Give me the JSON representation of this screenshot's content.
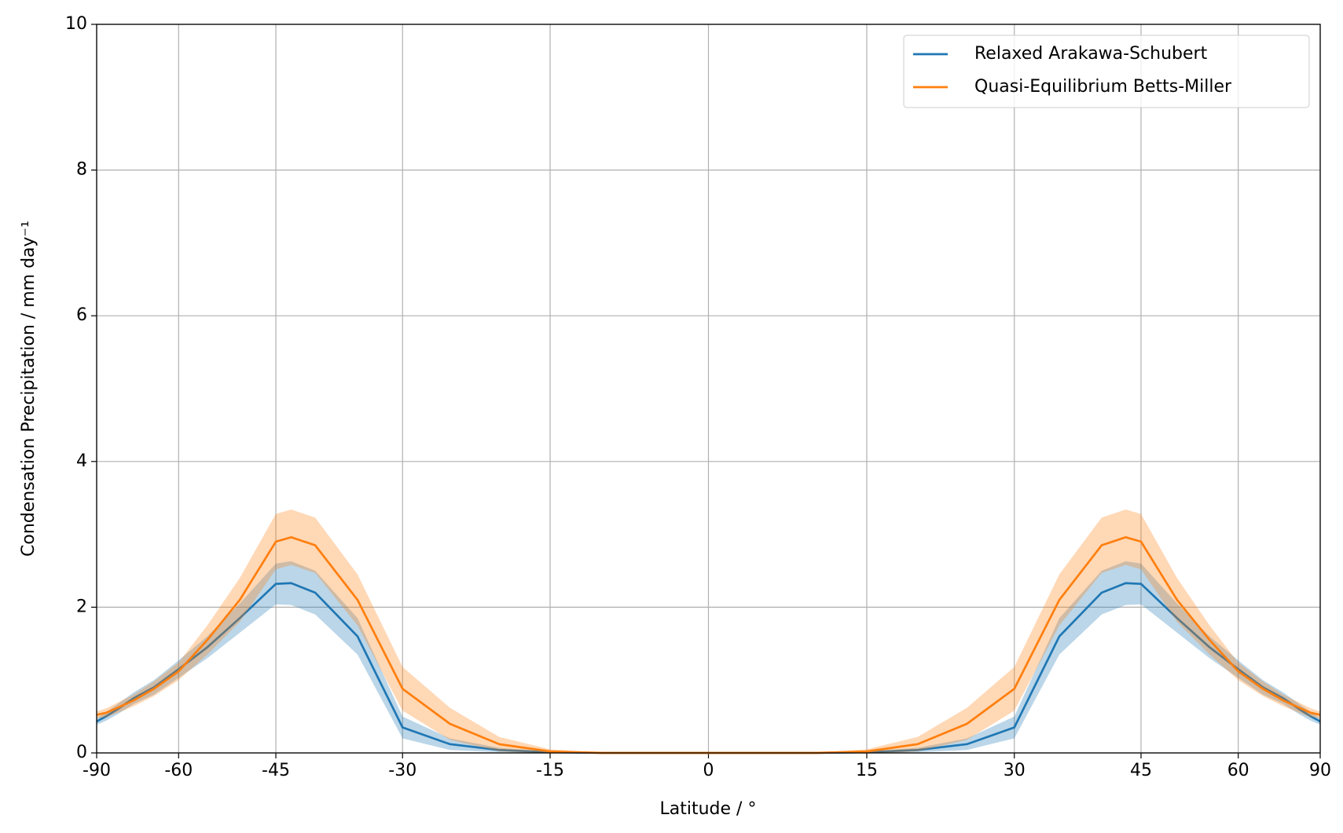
{
  "chart_data": {
    "type": "line",
    "xlabel": "Latitude / °",
    "ylabel": "Condensation Precipitation / mm day⁻¹",
    "xscale": "sine",
    "xlim": [
      -90,
      90
    ],
    "xticks": [
      -90,
      -60,
      -45,
      -30,
      -15,
      0,
      15,
      30,
      45,
      60,
      90
    ],
    "ylim": [
      0,
      10
    ],
    "yticks": [
      0,
      2,
      4,
      6,
      8,
      10
    ],
    "grid": true,
    "legend": "upper right",
    "x": [
      -90,
      -85,
      -80,
      -75,
      -70,
      -65,
      -60,
      -55,
      -50,
      -45,
      -43,
      -40,
      -35,
      -30,
      -25,
      -20,
      -15,
      -10,
      -5,
      0,
      5,
      10,
      15,
      20,
      25,
      30,
      35,
      40,
      43,
      45,
      50,
      55,
      60,
      65,
      70,
      75,
      80,
      85,
      90
    ],
    "series": [
      {
        "name": "Relaxed Arakawa-Schubert",
        "color": "#1f77b4",
        "values": [
          0.43,
          0.45,
          0.5,
          0.6,
          0.75,
          0.9,
          1.15,
          1.45,
          1.85,
          2.32,
          2.33,
          2.2,
          1.6,
          0.35,
          0.12,
          0.04,
          0.01,
          0,
          0,
          0,
          0,
          0,
          0.01,
          0.04,
          0.12,
          0.35,
          1.6,
          2.2,
          2.33,
          2.32,
          1.85,
          1.45,
          1.15,
          0.9,
          0.75,
          0.6,
          0.5,
          0.45,
          0.43
        ],
        "spread": [
          0.04,
          0.05,
          0.06,
          0.07,
          0.08,
          0.1,
          0.12,
          0.15,
          0.2,
          0.28,
          0.3,
          0.3,
          0.25,
          0.15,
          0.08,
          0.03,
          0.01,
          0,
          0,
          0,
          0,
          0,
          0.01,
          0.03,
          0.08,
          0.15,
          0.25,
          0.3,
          0.3,
          0.28,
          0.2,
          0.15,
          0.12,
          0.1,
          0.08,
          0.07,
          0.06,
          0.05,
          0.04
        ]
      },
      {
        "name": "Quasi-Equilibrium Betts-Miller",
        "color": "#ff7f0e",
        "values": [
          0.52,
          0.53,
          0.55,
          0.62,
          0.72,
          0.88,
          1.12,
          1.55,
          2.1,
          2.9,
          2.96,
          2.85,
          2.1,
          0.88,
          0.4,
          0.12,
          0.02,
          0,
          0,
          0,
          0,
          0,
          0.02,
          0.12,
          0.4,
          0.88,
          2.1,
          2.85,
          2.96,
          2.9,
          2.1,
          1.55,
          1.12,
          0.88,
          0.72,
          0.62,
          0.55,
          0.53,
          0.52
        ],
        "spread": [
          0.05,
          0.05,
          0.06,
          0.07,
          0.08,
          0.1,
          0.12,
          0.2,
          0.3,
          0.38,
          0.38,
          0.38,
          0.35,
          0.3,
          0.22,
          0.1,
          0.03,
          0,
          0,
          0,
          0,
          0,
          0.03,
          0.1,
          0.22,
          0.3,
          0.35,
          0.38,
          0.38,
          0.38,
          0.3,
          0.2,
          0.12,
          0.1,
          0.08,
          0.07,
          0.06,
          0.05,
          0.05
        ]
      }
    ]
  }
}
